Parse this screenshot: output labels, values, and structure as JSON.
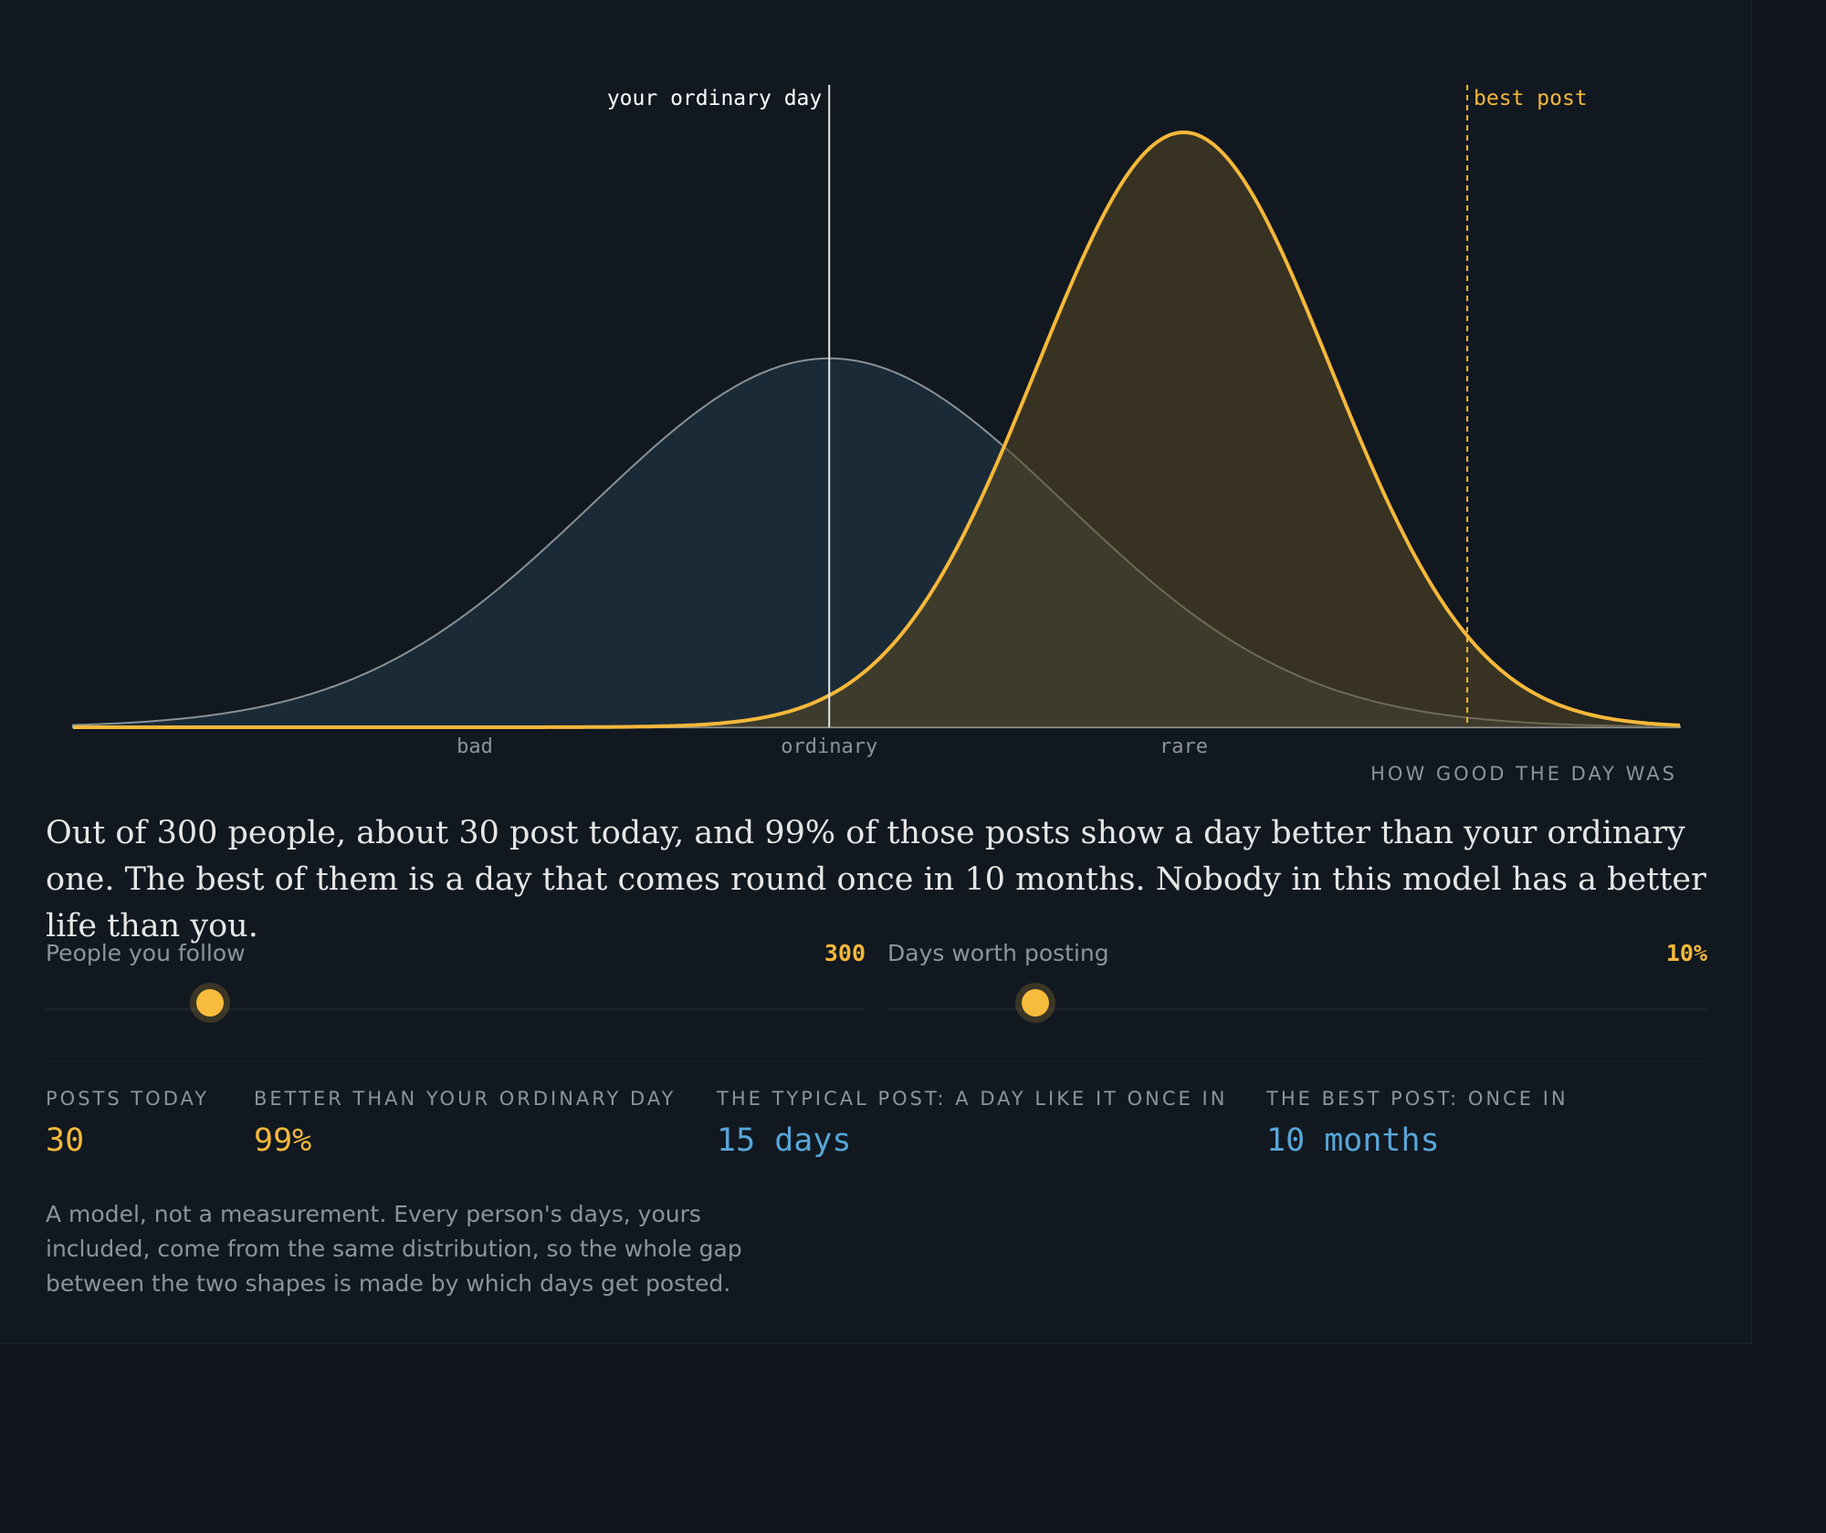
{
  "chart_data": {
    "type": "area",
    "xlabel": "HOW GOOD THE DAY WAS",
    "x_tick_labels": [
      "bad",
      "ordinary",
      "rare"
    ],
    "series": [
      {
        "shape": "normal",
        "mean": 0,
        "sd": 1,
        "color": "#8b949e"
      },
      {
        "shape": "normal",
        "mean": 1.5,
        "sd": 0.62,
        "color": "#f5b83a"
      }
    ],
    "markers": [
      {
        "label": "your ordinary day",
        "x": 0,
        "style": "solid",
        "color": "#ffffff"
      },
      {
        "label": "best post",
        "x": 2.7,
        "style": "dashed",
        "color": "#f5b83a"
      }
    ],
    "xlim": [
      -3.2,
      3.6
    ]
  },
  "narrative": "Out of 300 people, about 30 post today, and 99% of those posts show a day better than your ordinary one. The best of them is a day that comes round once in 10 months. Nobody in this model has a better life than you.",
  "controls": {
    "people": {
      "label": "People you follow",
      "value": "300",
      "fraction": 0.2
    },
    "days": {
      "label": "Days worth posting",
      "value": "10%",
      "fraction": 0.18
    }
  },
  "stats": [
    {
      "label": "POSTS TODAY",
      "value": "30",
      "color": "#f5b83a"
    },
    {
      "label": "BETTER THAN YOUR ORDINARY DAY",
      "value": "99%",
      "color": "#f5b83a"
    },
    {
      "label": "THE TYPICAL POST: A DAY LIKE IT ONCE IN",
      "value": "15 days",
      "color": "#58a6d8"
    },
    {
      "label": "THE BEST POST: ONCE IN",
      "value": "10 months",
      "color": "#58a6d8"
    }
  ],
  "note": "A model, not a measurement. Every person's days, yours included, come from the same distribution, so the whole gap between the two shapes is made by which days get posted."
}
